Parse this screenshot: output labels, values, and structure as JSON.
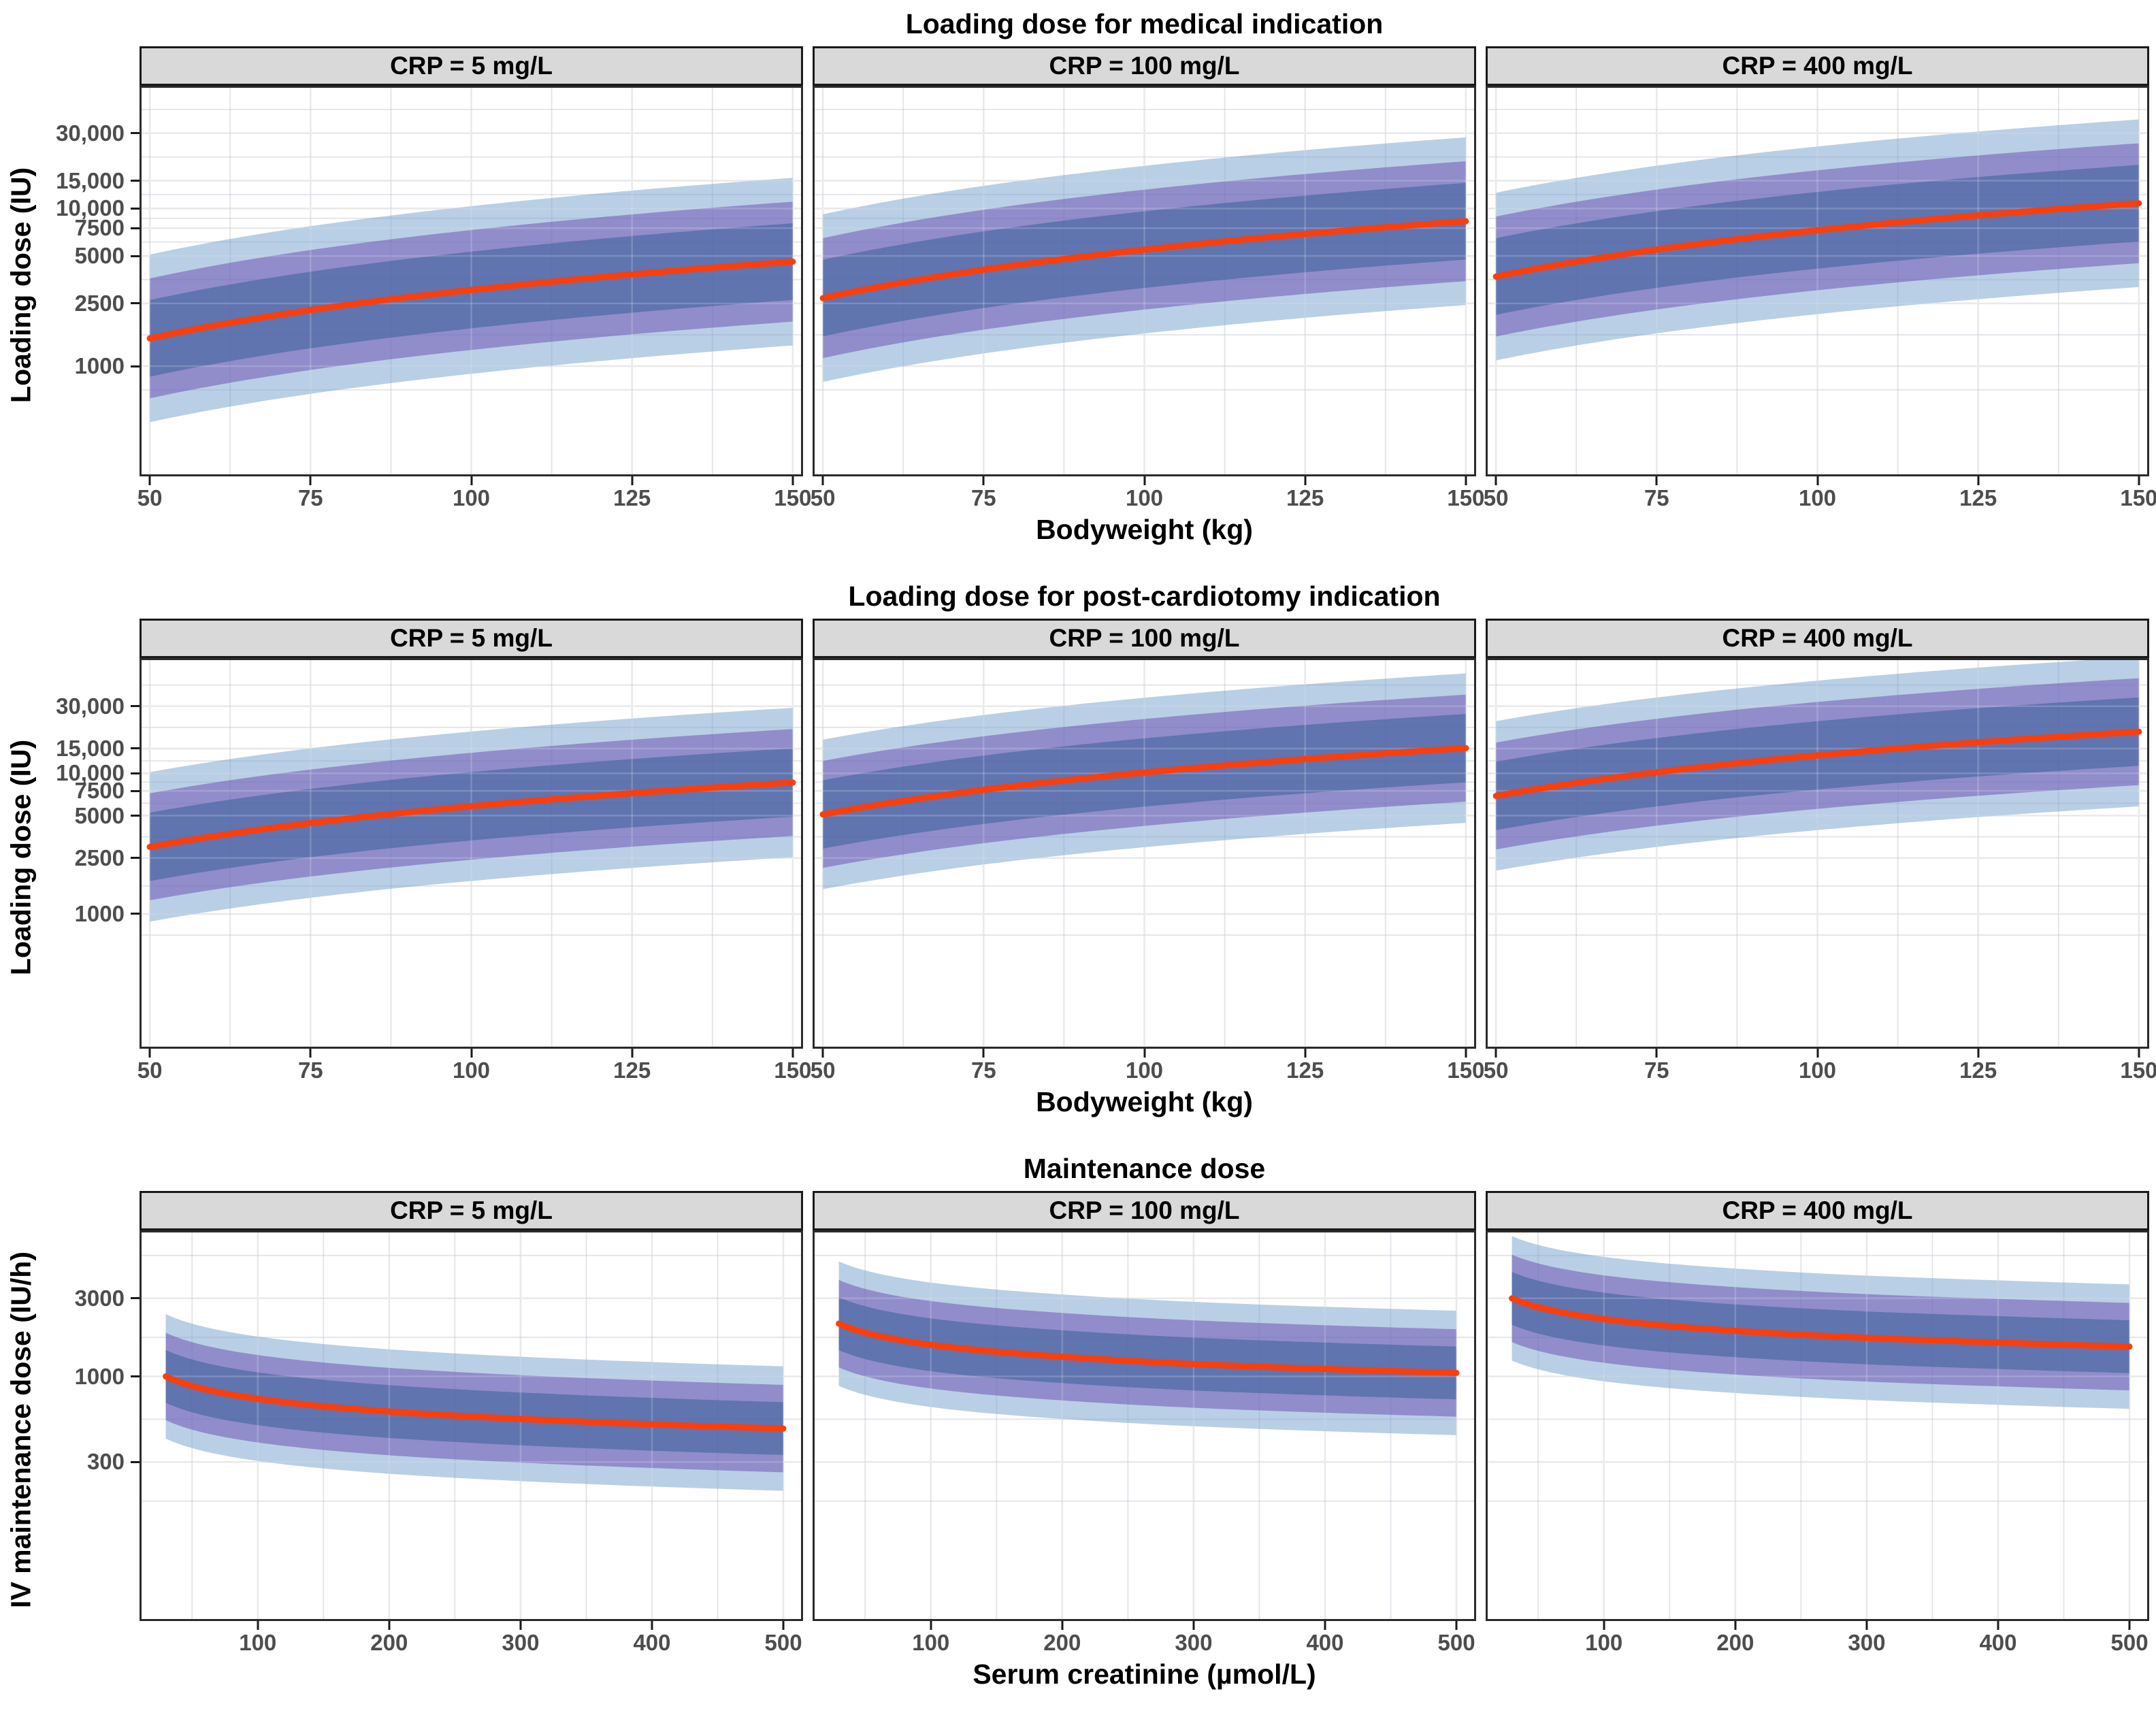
{
  "chart_data": {
    "type": "line",
    "layout": {
      "grid": "3 rows x 3 columns",
      "facet_variable": "CRP",
      "y_scale": "log10",
      "legend": false,
      "ribbons": "three nested prediction bands around median line"
    },
    "colors": {
      "median_line": "#FB3E0B",
      "band_inner": "rgba(88,112,170,0.85)",
      "band_middle": "rgba(136,129,197,0.85)",
      "band_outer": "rgba(168,195,222,0.80)",
      "strip_background": "#D9D9D9",
      "strip_border": "#1A1A1A",
      "panel_border": "#2B2B2B",
      "grid_major": "#E4E4E4",
      "grid_minor": "#F2F2F2",
      "grid_over_major": "rgba(255,255,255,0.18)",
      "grid_over_minor": "rgba(90,100,170,0.10)",
      "tick_label": "#4D4D4D",
      "text": "#000000"
    },
    "rows": [
      {
        "title": "Loading dose for medical indication",
        "x_axis": {
          "label": "Bodyweight (kg)",
          "domain": [
            48.4,
            151.6
          ],
          "ticks": [
            50,
            75,
            100,
            125,
            150
          ],
          "minor": [
            62.5,
            87.5,
            112.5,
            137.5
          ]
        },
        "y_axis": {
          "label": "Loading dose (IU)",
          "scale": "log10",
          "domain": [
            200,
            60000
          ],
          "ticks": [
            {
              "v": 1000,
              "label": "1000"
            },
            {
              "v": 2500,
              "label": "2500"
            },
            {
              "v": 5000,
              "label": "5000"
            },
            {
              "v": 7500,
              "label": "7500"
            },
            {
              "v": 10000,
              "label": "10,000"
            },
            {
              "v": 15000,
              "label": "15,000"
            },
            {
              "v": 30000,
              "label": "30,000"
            }
          ],
          "minor": [
            707,
            1581,
            3536,
            6124,
            8660,
            12247,
            21213,
            42426
          ]
        },
        "band_factors": {
          "inner": 1.75,
          "middle": 2.4,
          "outer": 3.4
        },
        "panels": [
          {
            "strip": "CRP = 5 mg/L",
            "x": [
              50,
              75,
              100,
              125,
              150
            ],
            "median": [
              1500,
              2270,
              3040,
              3820,
              4600
            ]
          },
          {
            "strip": "CRP = 100 mg/L",
            "x": [
              50,
              75,
              100,
              125,
              150
            ],
            "median": [
              2700,
              4090,
              5480,
              6890,
              8300
            ]
          },
          {
            "strip": "CRP = 400 mg/L",
            "x": [
              50,
              75,
              100,
              125,
              150
            ],
            "median": [
              3700,
              5490,
              7270,
              9040,
              10790
            ]
          }
        ]
      },
      {
        "title": "Loading dose for post-cardiotomy indication",
        "x_axis": {
          "label": "Bodyweight (kg)",
          "domain": [
            48.4,
            151.6
          ],
          "ticks": [
            50,
            75,
            100,
            125,
            150
          ],
          "minor": [
            62.5,
            87.5,
            112.5,
            137.5
          ]
        },
        "y_axis": {
          "label": "Loading dose (IU)",
          "scale": "log10",
          "domain": [
            110,
            66000
          ],
          "ticks": [
            {
              "v": 1000,
              "label": "1000"
            },
            {
              "v": 2500,
              "label": "2500"
            },
            {
              "v": 5000,
              "label": "5000"
            },
            {
              "v": 7500,
              "label": "7500"
            },
            {
              "v": 10000,
              "label": "10,000"
            },
            {
              "v": 15000,
              "label": "15,000"
            },
            {
              "v": 30000,
              "label": "30,000"
            }
          ],
          "minor": [
            707,
            1581,
            3536,
            6124,
            8660,
            12247,
            21213,
            42426
          ]
        },
        "band_factors": {
          "inner": 1.75,
          "middle": 2.4,
          "outer": 3.4
        },
        "panels": [
          {
            "strip": "CRP = 5 mg/L",
            "x": [
              50,
              75,
              100,
              125,
              150
            ],
            "median": [
              3000,
              4430,
              5830,
              7220,
              8600
            ]
          },
          {
            "strip": "CRP = 100 mg/L",
            "x": [
              50,
              75,
              100,
              125,
              150
            ],
            "median": [
              5100,
              7640,
              10140,
              12620,
              15100
            ]
          },
          {
            "strip": "CRP = 400 mg/L",
            "x": [
              50,
              75,
              100,
              125,
              150
            ],
            "median": [
              6900,
              10180,
              13410,
              16610,
              19780
            ]
          }
        ]
      },
      {
        "title": "Maintenance dose",
        "x_axis": {
          "label": "Serum creatinine (µmol/L)",
          "domain": [
            10,
            515
          ],
          "ticks": [
            100,
            200,
            300,
            400,
            500
          ],
          "minor": [
            50,
            150,
            250,
            350,
            450
          ]
        },
        "y_axis": {
          "label": "IV maintenance dose (IU/h)",
          "scale": "log10",
          "domain": [
            32,
            7800
          ],
          "ticks": [
            {
              "v": 300,
              "label": "300"
            },
            {
              "v": 1000,
              "label": "1000"
            },
            {
              "v": 3000,
              "label": "3000"
            }
          ],
          "minor": [
            173,
            548,
            1732,
            5477
          ]
        },
        "band_factors": {
          "inner": 1.45,
          "middle": 1.85,
          "outer": 2.4
        },
        "panels": [
          {
            "strip": "CRP = 5 mg/L",
            "x": [
              30,
              100,
              200,
              300,
              400,
              500
            ],
            "median": [
              1000,
              730,
              610,
              550,
              510,
              480
            ]
          },
          {
            "strip": "CRP = 100 mg/L",
            "x": [
              30,
              100,
              200,
              300,
              400,
              500
            ],
            "median": [
              2100,
              1560,
              1320,
              1190,
              1110,
              1050
            ]
          },
          {
            "strip": "CRP = 400 mg/L",
            "x": [
              30,
              100,
              200,
              300,
              400,
              500
            ],
            "median": [
              3000,
              2240,
              1900,
              1720,
              1610,
              1520
            ]
          }
        ]
      }
    ]
  }
}
